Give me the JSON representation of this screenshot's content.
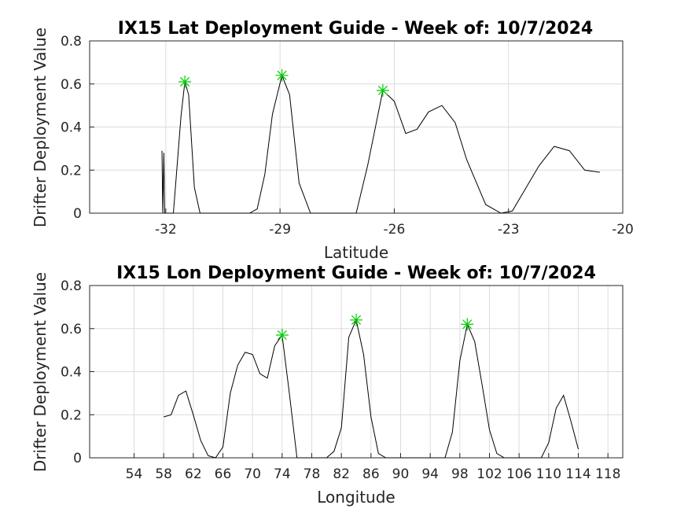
{
  "chart_data": [
    {
      "type": "line",
      "title": "IX15 Lat Deployment Guide - Week of: 10/7/2024",
      "xlabel": "Latitude",
      "ylabel": "Drifter Deployment Value",
      "xlim": [
        -34,
        -20
      ],
      "ylim": [
        0,
        0.8
      ],
      "xticks": [
        -32,
        -29,
        -26,
        -23,
        -20
      ],
      "yticks": [
        0,
        0.2,
        0.4,
        0.6,
        0.8
      ],
      "grid": true,
      "series": [
        {
          "points": [
            [
              -32.1,
              0.29
            ],
            [
              -32.08,
              0.0
            ],
            [
              -32.05,
              0.28
            ],
            [
              -32.03,
              0.0
            ],
            [
              -31.85,
              0.0
            ],
            [
              -31.8,
              0.0
            ],
            [
              -31.6,
              0.45
            ],
            [
              -31.5,
              0.61
            ],
            [
              -31.4,
              0.55
            ],
            [
              -31.25,
              0.12
            ],
            [
              -31.1,
              0.0
            ],
            [
              -30.5,
              0.0
            ],
            [
              -29.8,
              0.0
            ],
            [
              -29.6,
              0.02
            ],
            [
              -29.4,
              0.18
            ],
            [
              -29.2,
              0.46
            ],
            [
              -28.95,
              0.64
            ],
            [
              -28.75,
              0.55
            ],
            [
              -28.5,
              0.14
            ],
            [
              -28.2,
              0.0
            ],
            [
              -27.0,
              0.0
            ],
            [
              -26.7,
              0.22
            ],
            [
              -26.3,
              0.57
            ],
            [
              -26.0,
              0.52
            ],
            [
              -25.7,
              0.37
            ],
            [
              -25.4,
              0.39
            ],
            [
              -25.1,
              0.47
            ],
            [
              -24.75,
              0.5
            ],
            [
              -24.4,
              0.42
            ],
            [
              -24.1,
              0.25
            ],
            [
              -23.6,
              0.04
            ],
            [
              -23.2,
              0.0
            ],
            [
              -22.9,
              0.01
            ],
            [
              -22.6,
              0.1
            ],
            [
              -22.2,
              0.22
            ],
            [
              -21.8,
              0.31
            ],
            [
              -21.4,
              0.29
            ],
            [
              -21.0,
              0.2
            ],
            [
              -20.6,
              0.19
            ]
          ]
        }
      ],
      "markers": [
        [
          -31.5,
          0.61
        ],
        [
          -28.95,
          0.64
        ],
        [
          -26.3,
          0.57
        ]
      ]
    },
    {
      "type": "line",
      "title": "IX15 Lon Deployment Guide - Week of: 10/7/2024",
      "xlabel": "Longitude",
      "ylabel": "Drifter Deployment Value",
      "xlim": [
        48,
        120
      ],
      "ylim": [
        0,
        0.8
      ],
      "xticks": [
        54,
        58,
        62,
        66,
        70,
        74,
        78,
        82,
        86,
        90,
        94,
        98,
        102,
        106,
        110,
        114,
        118
      ],
      "yticks": [
        0,
        0.2,
        0.4,
        0.6,
        0.8
      ],
      "grid": true,
      "series": [
        {
          "points": [
            [
              58,
              0.19
            ],
            [
              59,
              0.2
            ],
            [
              60,
              0.29
            ],
            [
              61,
              0.31
            ],
            [
              62,
              0.2
            ],
            [
              63,
              0.08
            ],
            [
              64,
              0.01
            ],
            [
              65,
              0.0
            ],
            [
              66,
              0.05
            ],
            [
              67,
              0.3
            ],
            [
              68,
              0.43
            ],
            [
              69,
              0.49
            ],
            [
              70,
              0.48
            ],
            [
              71,
              0.39
            ],
            [
              72,
              0.37
            ],
            [
              73,
              0.52
            ],
            [
              74,
              0.57
            ],
            [
              75,
              0.29
            ],
            [
              76,
              0.0
            ],
            [
              80,
              0.0
            ],
            [
              81,
              0.03
            ],
            [
              82,
              0.14
            ],
            [
              83,
              0.56
            ],
            [
              84,
              0.64
            ],
            [
              85,
              0.48
            ],
            [
              86,
              0.19
            ],
            [
              87,
              0.02
            ],
            [
              88,
              0.0
            ],
            [
              96,
              0.0
            ],
            [
              97,
              0.12
            ],
            [
              98,
              0.45
            ],
            [
              99,
              0.62
            ],
            [
              100,
              0.54
            ],
            [
              101,
              0.34
            ],
            [
              102,
              0.13
            ],
            [
              103,
              0.02
            ],
            [
              104,
              0.0
            ],
            [
              109,
              0.0
            ],
            [
              110,
              0.07
            ],
            [
              111,
              0.23
            ],
            [
              112,
              0.29
            ],
            [
              113,
              0.17
            ],
            [
              114,
              0.04
            ]
          ]
        }
      ],
      "markers": [
        [
          74,
          0.57
        ],
        [
          84,
          0.64
        ],
        [
          99,
          0.62
        ]
      ]
    }
  ]
}
